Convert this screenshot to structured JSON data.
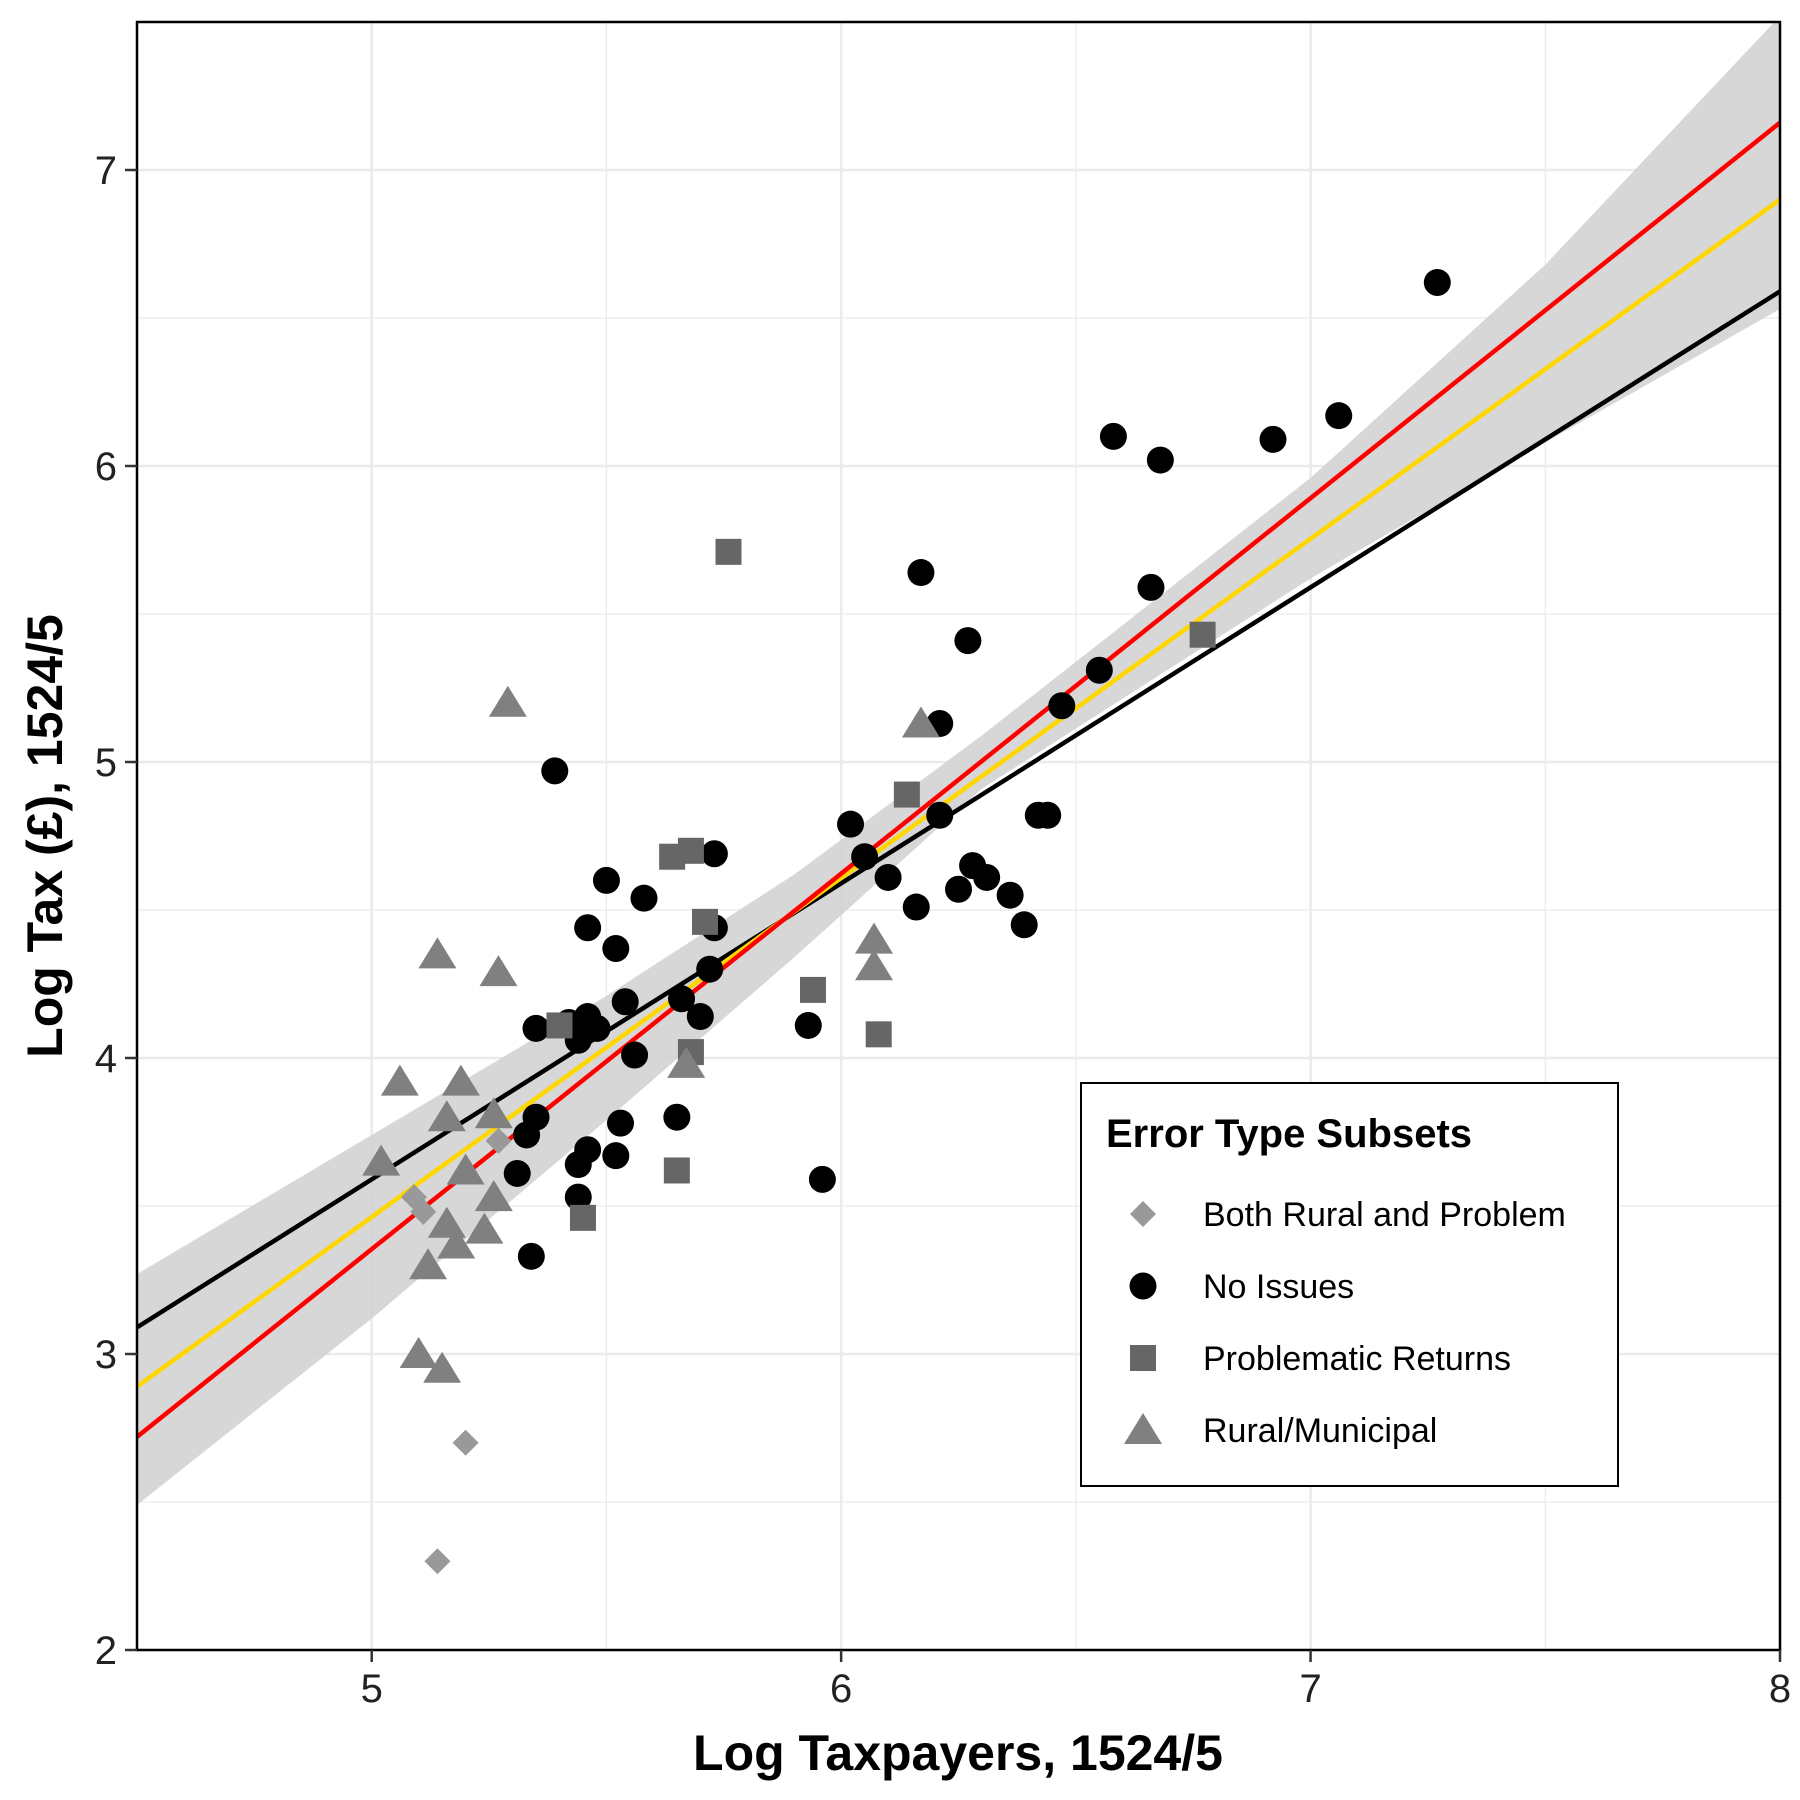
{
  "chart_data": {
    "type": "scatter",
    "xlabel": "Log Taxpayers, 1524/5",
    "ylabel": "Log Tax (£), 1524/5",
    "xlim": [
      4.5,
      8
    ],
    "ylim": [
      2,
      7.5
    ],
    "xticks": [
      5,
      6,
      7,
      8
    ],
    "yticks": [
      2,
      3,
      4,
      5,
      6,
      7
    ],
    "grid": true,
    "legend": {
      "title": "Error Type Subsets",
      "placement": "bottom-right"
    },
    "series": [
      {
        "name": "Both Rural and Problem",
        "marker": "diamond",
        "color": "#999999",
        "points": [
          [
            5.09,
            3.53
          ],
          [
            5.11,
            3.48
          ],
          [
            5.2,
            2.7
          ],
          [
            5.14,
            2.3
          ],
          [
            5.27,
            3.72
          ]
        ]
      },
      {
        "name": "No Issues",
        "marker": "circle",
        "color": "#000000",
        "points": [
          [
            5.39,
            4.97
          ],
          [
            5.5,
            4.6
          ],
          [
            5.46,
            4.44
          ],
          [
            5.52,
            4.37
          ],
          [
            5.58,
            4.54
          ],
          [
            5.54,
            4.19
          ],
          [
            5.35,
            4.1
          ],
          [
            5.42,
            4.12
          ],
          [
            5.46,
            4.14
          ],
          [
            5.48,
            4.1
          ],
          [
            5.44,
            4.06
          ],
          [
            5.56,
            4.01
          ],
          [
            5.66,
            4.2
          ],
          [
            5.7,
            4.14
          ],
          [
            5.72,
            4.3
          ],
          [
            5.73,
            4.44
          ],
          [
            5.73,
            4.69
          ],
          [
            5.53,
            3.78
          ],
          [
            5.46,
            3.69
          ],
          [
            5.44,
            3.64
          ],
          [
            5.52,
            3.67
          ],
          [
            5.44,
            3.53
          ],
          [
            5.35,
            3.8
          ],
          [
            5.33,
            3.74
          ],
          [
            5.31,
            3.61
          ],
          [
            5.34,
            3.33
          ],
          [
            5.65,
            3.8
          ],
          [
            5.93,
            4.11
          ],
          [
            5.96,
            3.59
          ],
          [
            6.02,
            4.79
          ],
          [
            6.05,
            4.68
          ],
          [
            6.1,
            4.61
          ],
          [
            6.16,
            4.51
          ],
          [
            6.17,
            5.64
          ],
          [
            6.21,
            5.13
          ],
          [
            6.21,
            4.82
          ],
          [
            6.27,
            5.41
          ],
          [
            6.28,
            4.65
          ],
          [
            6.25,
            4.57
          ],
          [
            6.31,
            4.61
          ],
          [
            6.36,
            4.55
          ],
          [
            6.39,
            4.45
          ],
          [
            6.42,
            4.82
          ],
          [
            6.44,
            4.82
          ],
          [
            6.47,
            5.19
          ],
          [
            6.55,
            5.31
          ],
          [
            6.58,
            6.1
          ],
          [
            6.66,
            5.59
          ],
          [
            6.68,
            6.02
          ],
          [
            6.92,
            6.09
          ],
          [
            7.06,
            6.17
          ],
          [
            7.27,
            6.62
          ]
        ]
      },
      {
        "name": "Problematic Returns",
        "marker": "square",
        "color": "#666666",
        "points": [
          [
            5.76,
            5.71
          ],
          [
            5.64,
            4.68
          ],
          [
            5.68,
            4.7
          ],
          [
            5.71,
            4.46
          ],
          [
            5.68,
            4.02
          ],
          [
            5.4,
            4.11
          ],
          [
            5.45,
            3.46
          ],
          [
            5.65,
            3.62
          ],
          [
            5.94,
            4.23
          ],
          [
            6.08,
            4.08
          ],
          [
            6.14,
            4.89
          ],
          [
            6.77,
            5.43
          ]
        ]
      },
      {
        "name": "Rural/Municipal",
        "marker": "triangle",
        "color": "#808080",
        "points": [
          [
            5.29,
            5.2
          ],
          [
            5.14,
            4.35
          ],
          [
            5.27,
            4.29
          ],
          [
            5.06,
            3.92
          ],
          [
            5.19,
            3.92
          ],
          [
            5.16,
            3.8
          ],
          [
            5.26,
            3.81
          ],
          [
            5.02,
            3.65
          ],
          [
            5.2,
            3.62
          ],
          [
            5.26,
            3.53
          ],
          [
            5.16,
            3.44
          ],
          [
            5.18,
            3.37
          ],
          [
            5.24,
            3.42
          ],
          [
            5.12,
            3.3
          ],
          [
            5.1,
            3.0
          ],
          [
            5.15,
            2.95
          ],
          [
            5.67,
            3.98
          ],
          [
            6.07,
            4.4
          ],
          [
            6.07,
            4.31
          ],
          [
            6.17,
            5.13
          ]
        ]
      }
    ],
    "fit_lines": [
      {
        "color": "#000000",
        "from": [
          4.5,
          3.09
        ],
        "to": [
          8,
          6.59
        ]
      },
      {
        "color": "#ffd700",
        "from": [
          4.5,
          2.89
        ],
        "to": [
          8,
          6.9
        ]
      },
      {
        "color": "#ff0000",
        "from": [
          4.5,
          2.72
        ],
        "to": [
          8,
          7.16
        ]
      }
    ],
    "confidence_band": {
      "color": "#d3d3d3",
      "x": [
        4.5,
        5.0,
        5.5,
        5.9,
        6.3,
        7.0,
        7.5,
        8.0
      ],
      "lower": [
        2.49,
        3.12,
        3.79,
        4.34,
        4.91,
        5.62,
        6.08,
        6.53
      ],
      "upper": [
        3.27,
        3.74,
        4.21,
        4.62,
        5.09,
        5.96,
        6.68,
        7.52
      ]
    }
  }
}
